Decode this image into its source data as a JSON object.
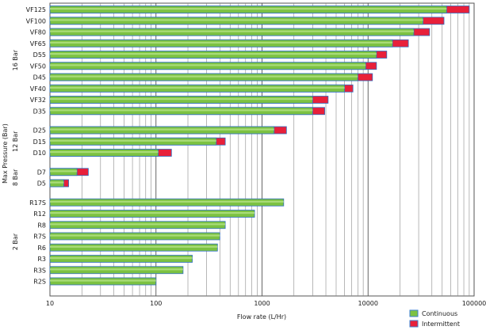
{
  "chart_data": {
    "type": "bar",
    "orientation": "horizontal",
    "stacked": true,
    "xlabel": "Flow rate (L/Hr)",
    "ylabel": "Max Pressure (Bar)",
    "x_scale": "log",
    "xlim": [
      10,
      100000
    ],
    "x_ticks": [
      10,
      100,
      1000,
      10000,
      100000
    ],
    "x_tick_labels": [
      "10",
      "100",
      "1000",
      "10000",
      "100000"
    ],
    "grid": true,
    "legend_position": "bottom-right",
    "groups": [
      {
        "label": "16 Bar",
        "categories": [
          "VF125",
          "VF100",
          "VF80",
          "VF65",
          "D55",
          "VF50",
          "D45",
          "VF40",
          "VF32",
          "D35"
        ]
      },
      {
        "label": "12 Bar",
        "categories": [
          "D25",
          "D15",
          "D10"
        ]
      },
      {
        "label": "8 Bar",
        "categories": [
          "D7",
          "D5"
        ]
      },
      {
        "label": "2 Bar",
        "categories": [
          "R17S",
          "R12",
          "R8",
          "R7S",
          "R6",
          "R3",
          "R3S",
          "R2S"
        ]
      }
    ],
    "series": [
      {
        "name": "Continuous",
        "color": "#7cc242",
        "values": {
          "VF125": 55000,
          "VF100": 33000,
          "VF80": 27000,
          "VF65": 17000,
          "D55": 12000,
          "VF50": 9500,
          "D45": 8000,
          "VF40": 6000,
          "VF32": 3000,
          "D35": 3000,
          "D25": 1300,
          "D15": 370,
          "D10": 105,
          "D7": 18,
          "D5": 13.5,
          "R17S": 1600,
          "R12": 850,
          "R8": 450,
          "R7S": 400,
          "R6": 380,
          "R3": 220,
          "R3S": 180,
          "R2S": 100
        }
      },
      {
        "name": "Intermittent",
        "color": "#e8203a",
        "values": {
          "VF125": 90000,
          "VF100": 52000,
          "VF80": 38000,
          "VF65": 24000,
          "D55": 15000,
          "VF50": 12000,
          "D45": 11000,
          "VF40": 7200,
          "VF32": 4200,
          "D35": 3900,
          "D25": 1700,
          "D15": 450,
          "D10": 140,
          "D7": 23,
          "D5": 15,
          "R17S": 1600,
          "R12": 850,
          "R8": 450,
          "R7S": 400,
          "R6": 380,
          "R3": 220,
          "R3S": 180,
          "R2S": 100
        }
      }
    ]
  }
}
